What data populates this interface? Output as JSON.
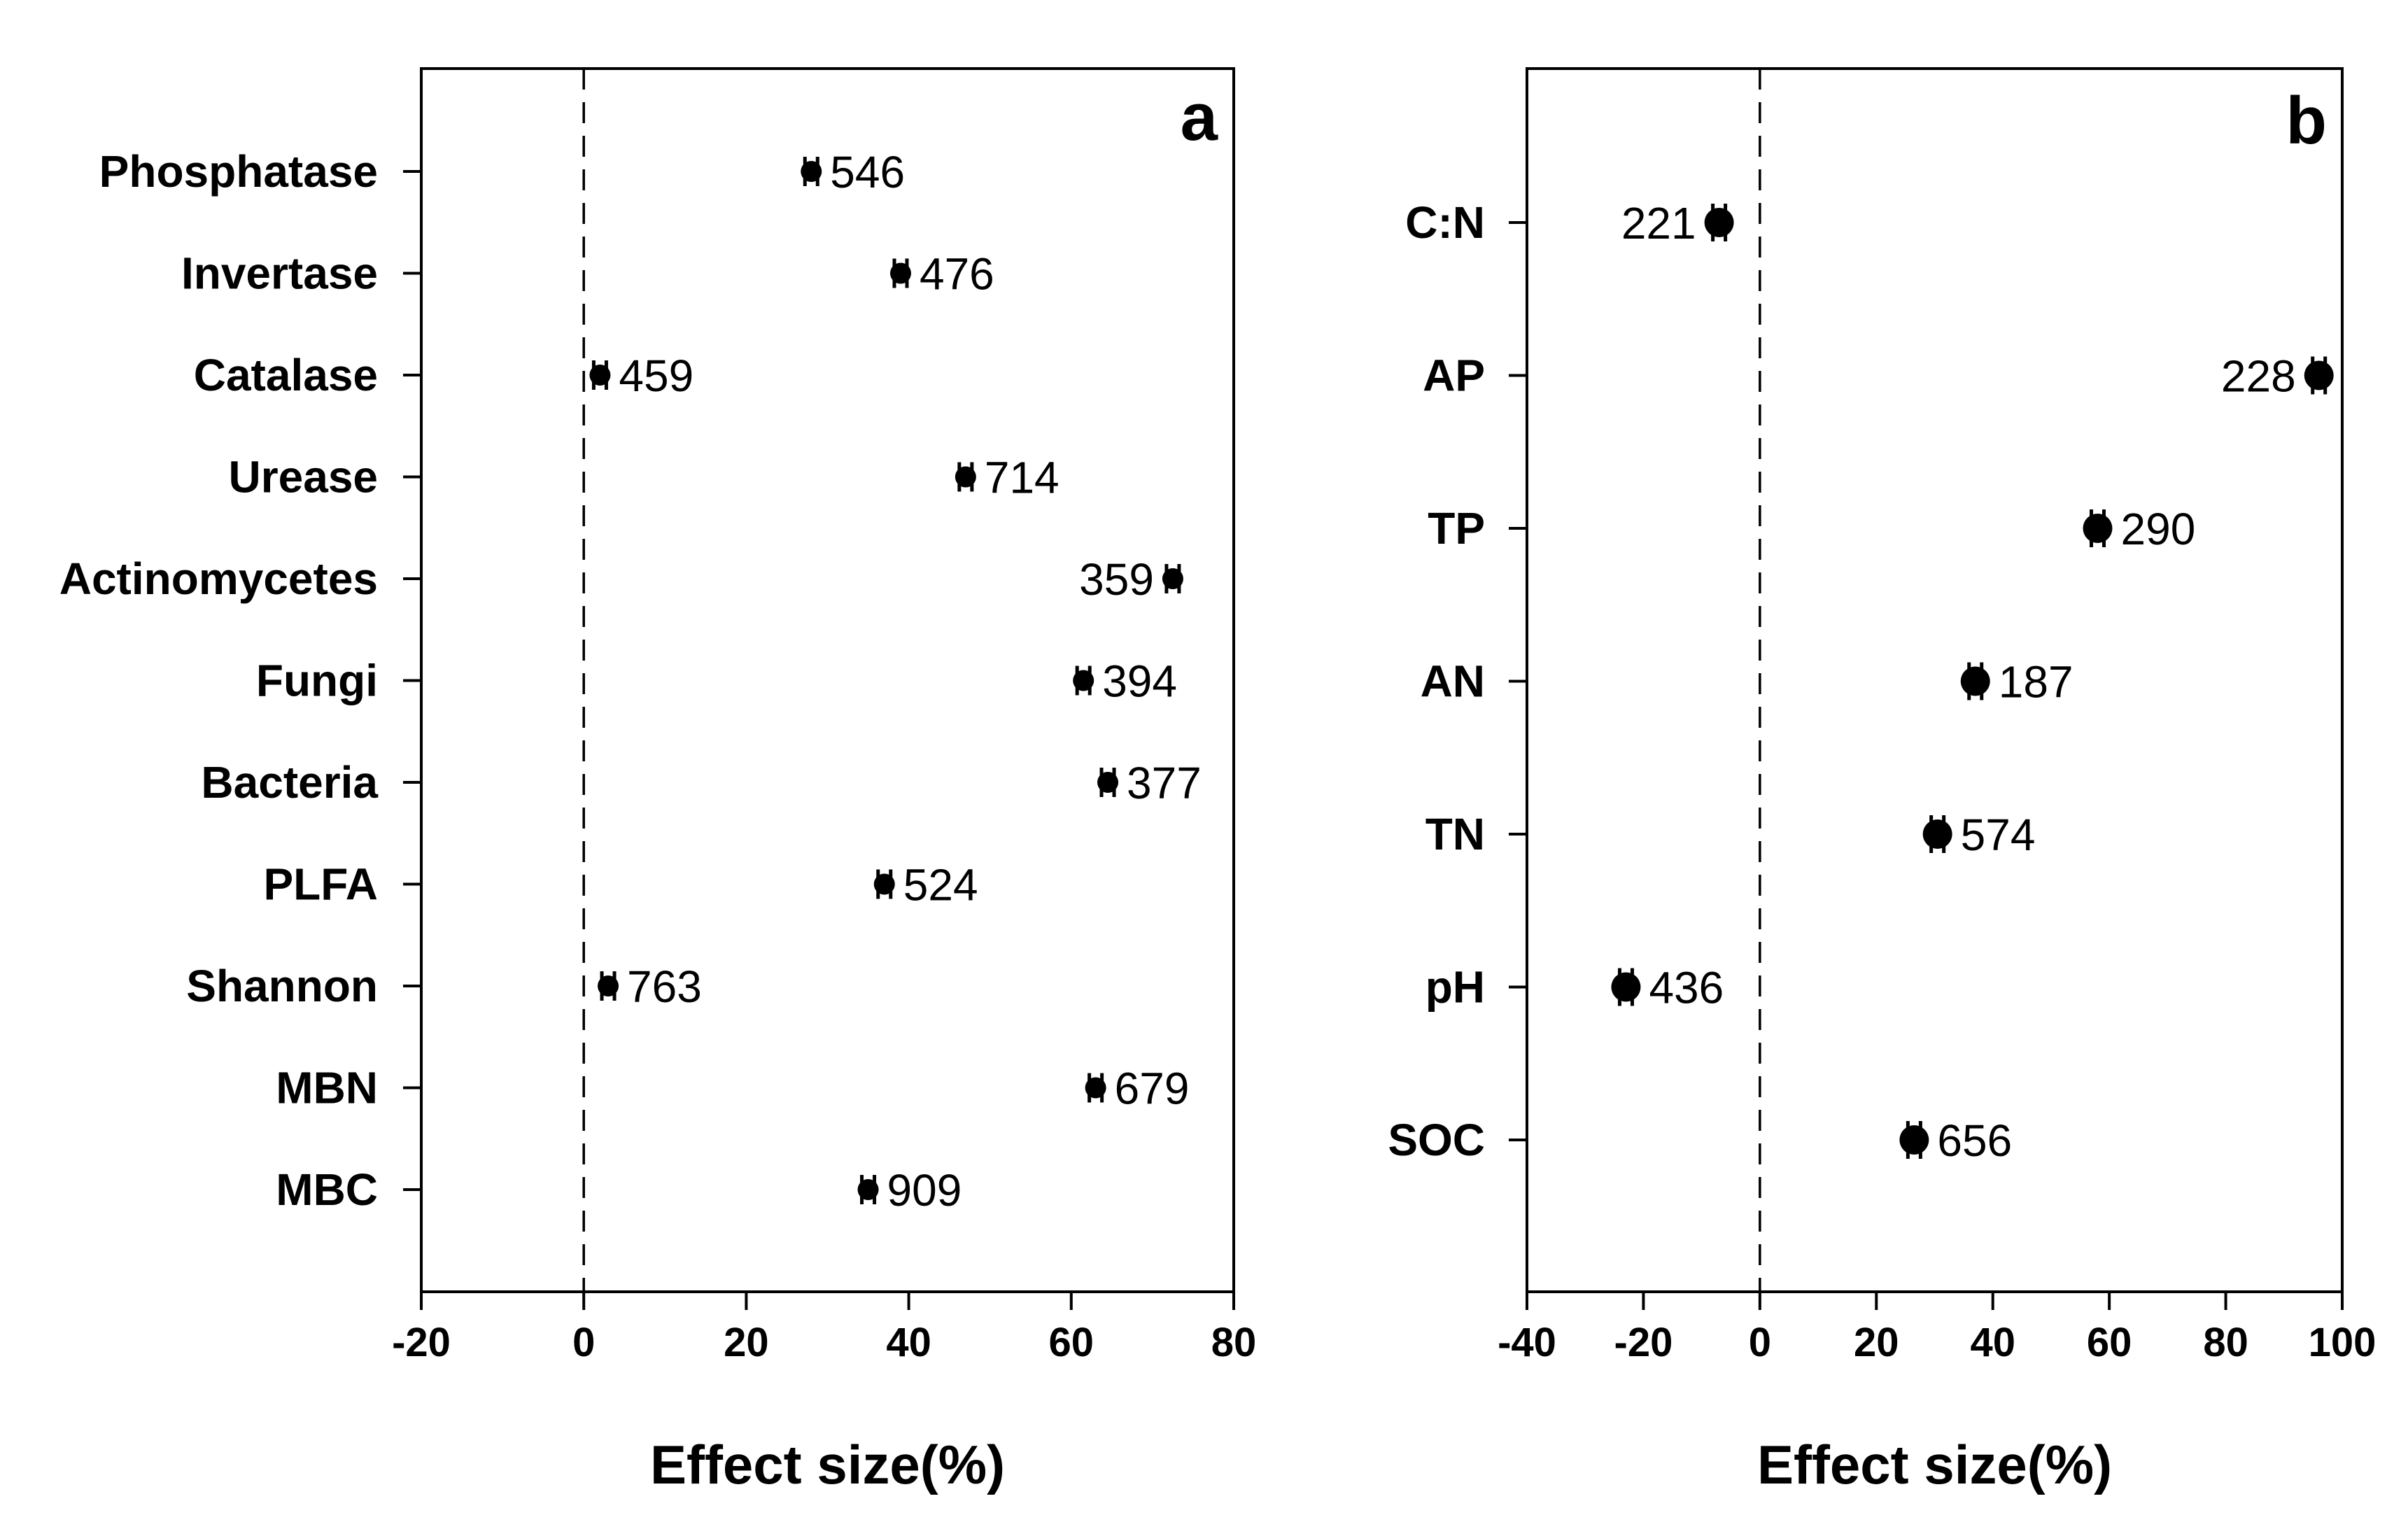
{
  "chart_data": [
    {
      "type": "scatter",
      "panel": "a",
      "xlabel": "Effect size(%)",
      "ylabel": "",
      "xlim": [
        -20,
        80
      ],
      "xticks": [
        -20,
        0,
        20,
        40,
        60,
        80
      ],
      "reference_line_x": 0,
      "points": [
        {
          "category": "Phosphatase",
          "value": 28,
          "n": "546",
          "label_side": "right"
        },
        {
          "category": "Invertase",
          "value": 39,
          "n": "476",
          "label_side": "right"
        },
        {
          "category": "Catalase",
          "value": 2,
          "n": "459",
          "label_side": "right"
        },
        {
          "category": "Urease",
          "value": 47,
          "n": "714",
          "label_side": "right"
        },
        {
          "category": "Actinomycetes",
          "value": 72.5,
          "n": "359",
          "label_side": "left"
        },
        {
          "category": "Fungi",
          "value": 61.5,
          "n": "394",
          "label_side": "right"
        },
        {
          "category": "Bacteria",
          "value": 64.5,
          "n": "377",
          "label_side": "right"
        },
        {
          "category": "PLFA",
          "value": 37,
          "n": "524",
          "label_side": "right"
        },
        {
          "category": "Shannon",
          "value": 3,
          "n": "763",
          "label_side": "right"
        },
        {
          "category": "MBN",
          "value": 63,
          "n": "679",
          "label_side": "right"
        },
        {
          "category": "MBC",
          "value": 35,
          "n": "909",
          "label_side": "right"
        }
      ]
    },
    {
      "type": "scatter",
      "panel": "b",
      "xlabel": "Effect size(%)",
      "ylabel": "",
      "xlim": [
        -40,
        100
      ],
      "xticks": [
        -40,
        -20,
        0,
        20,
        40,
        60,
        80,
        100
      ],
      "reference_line_x": 0,
      "points": [
        {
          "category": "C:N",
          "value": -7,
          "n": "221",
          "label_side": "left"
        },
        {
          "category": "AP",
          "value": 96,
          "n": "228",
          "label_side": "left"
        },
        {
          "category": "TP",
          "value": 58,
          "n": "290",
          "label_side": "right"
        },
        {
          "category": "AN",
          "value": 37,
          "n": "187",
          "label_side": "right"
        },
        {
          "category": "TN",
          "value": 30.5,
          "n": "574",
          "label_side": "right"
        },
        {
          "category": "pH",
          "value": -23,
          "n": "436",
          "label_side": "right"
        },
        {
          "category": "SOC",
          "value": 26.5,
          "n": "656",
          "label_side": "right"
        }
      ]
    }
  ]
}
